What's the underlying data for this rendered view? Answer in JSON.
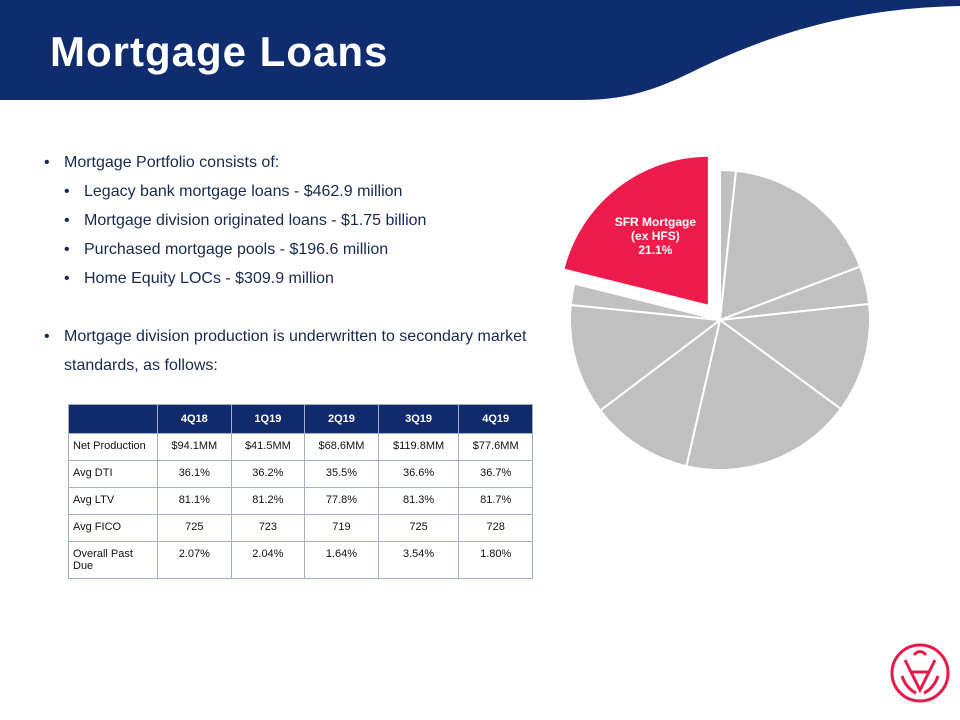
{
  "header": {
    "title": "Mortgage Loans"
  },
  "bullets": [
    {
      "text": "Mortgage Portfolio consists of:",
      "items": [
        "Legacy bank mortgage loans - $462.9 million",
        "Mortgage division originated loans - $1.75 billion",
        "Purchased mortgage pools - $196.6 million",
        "Home Equity LOCs - $309.9 million"
      ]
    },
    {
      "text": "Mortgage division production is underwritten to secondary market standards, as follows:"
    }
  ],
  "table": {
    "columns": [
      "4Q18",
      "1Q19",
      "2Q19",
      "3Q19",
      "4Q19"
    ],
    "rows": [
      {
        "label": "Net Production",
        "cells": [
          "$94.1MM",
          "$41.5MM",
          "$68.6MM",
          "$119.8MM",
          "$77.6MM"
        ]
      },
      {
        "label": "Avg DTI",
        "cells": [
          "36.1%",
          "36.2%",
          "35.5%",
          "36.6%",
          "36.7%"
        ]
      },
      {
        "label": "Avg LTV",
        "cells": [
          "81.1%",
          "81.2%",
          "77.8%",
          "81.3%",
          "81.7%"
        ]
      },
      {
        "label": "Avg FICO",
        "cells": [
          "725",
          "723",
          "719",
          "725",
          "728"
        ]
      },
      {
        "label": "Overall Past Due",
        "cells": [
          "2.07%",
          "2.04%",
          "1.64%",
          "3.54%",
          "1.80%"
        ]
      }
    ]
  },
  "chart_data": {
    "type": "pie",
    "categories": [
      null,
      null,
      null,
      null,
      null,
      null,
      null,
      null,
      "SFR Mortgage (ex HFS)"
    ],
    "values": [
      1.7,
      17.5,
      4.1,
      11.8,
      18.5,
      11.1,
      11.9,
      2.3,
      21.1
    ],
    "value_labels": [
      null,
      null,
      null,
      null,
      null,
      null,
      null,
      null,
      "21.1%"
    ],
    "colors": [
      "#c0c0c0",
      "#c0c0c0",
      "#c0c0c0",
      "#c0c0c0",
      "#c0c0c0",
      "#c0c0c0",
      "#c0c0c0",
      "#c0c0c0",
      "#ef1c4b"
    ],
    "explode": [
      false,
      false,
      false,
      false,
      false,
      false,
      false,
      false,
      true
    ]
  }
}
